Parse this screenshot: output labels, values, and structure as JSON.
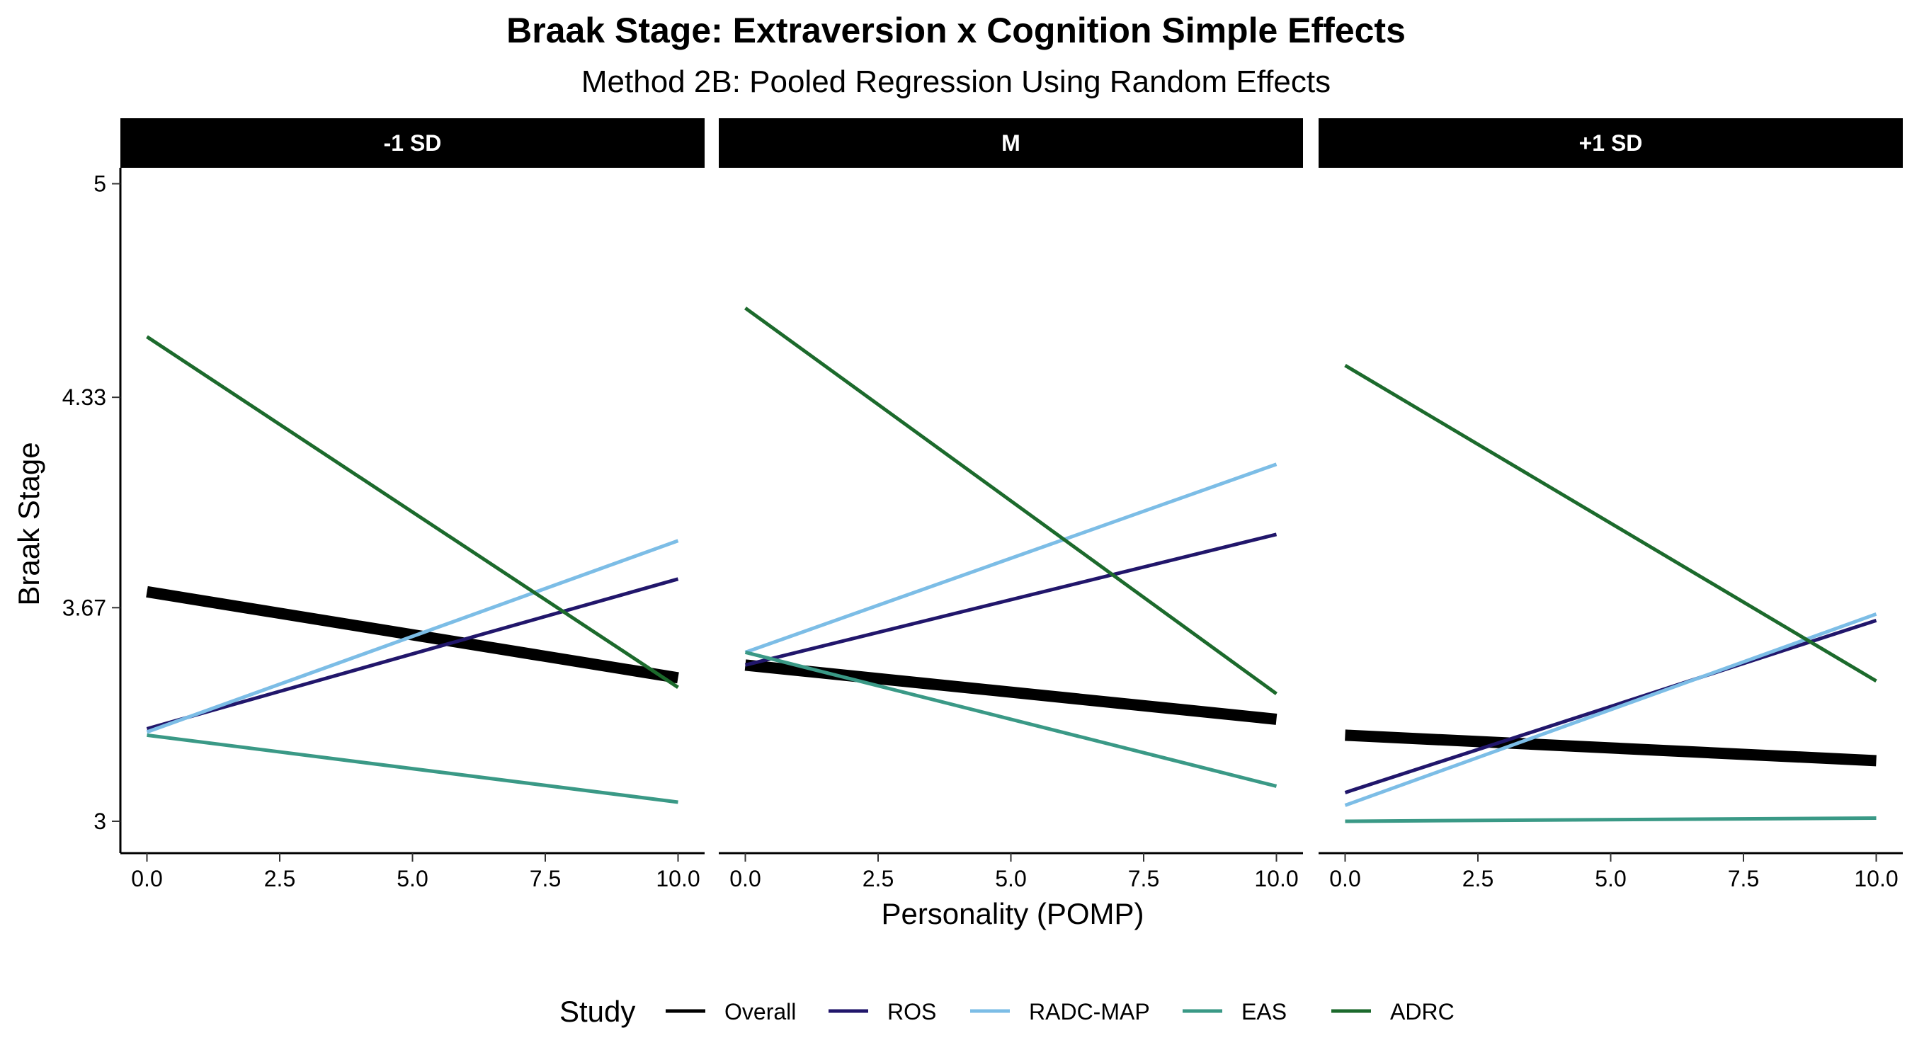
{
  "chart_data": {
    "type": "line",
    "title": "Braak Stage: Extraversion x Cognition Simple Effects",
    "subtitle": "Method 2B: Pooled Regression Using Random Effects",
    "xlabel": "Personality (POMP)",
    "ylabel": "Braak Stage",
    "x_ticks": [
      "0.0",
      "2.5",
      "5.0",
      "7.5",
      "10.0"
    ],
    "y_ticks": [
      "3",
      "3.67",
      "4.33",
      "5"
    ],
    "xlim": [
      -0.5,
      10.5
    ],
    "ylim": [
      2.9,
      5.05
    ],
    "grid": false,
    "legend": {
      "title": "Study",
      "position": "bottom",
      "entries": [
        {
          "name": "Overall",
          "color": "#000000"
        },
        {
          "name": "ROS",
          "color": "#21166b"
        },
        {
          "name": "RADC-MAP",
          "color": "#7cbde6"
        },
        {
          "name": "EAS",
          "color": "#3a9986"
        },
        {
          "name": "ADRC",
          "color": "#1c6a2c"
        }
      ]
    },
    "facets": [
      {
        "label": "-1 SD",
        "series": [
          {
            "name": "Overall",
            "x": [
              0,
              10
            ],
            "y": [
              3.72,
              3.45
            ]
          },
          {
            "name": "ROS",
            "x": [
              0,
              10
            ],
            "y": [
              3.29,
              3.76
            ]
          },
          {
            "name": "RADC-MAP",
            "x": [
              0,
              10
            ],
            "y": [
              3.28,
              3.88
            ]
          },
          {
            "name": "EAS",
            "x": [
              0,
              10
            ],
            "y": [
              3.27,
              3.06
            ]
          },
          {
            "name": "ADRC",
            "x": [
              0,
              10
            ],
            "y": [
              4.52,
              3.42
            ]
          }
        ]
      },
      {
        "label": "M",
        "series": [
          {
            "name": "Overall",
            "x": [
              0,
              10
            ],
            "y": [
              3.49,
              3.32
            ]
          },
          {
            "name": "ROS",
            "x": [
              0,
              10
            ],
            "y": [
              3.49,
              3.9
            ]
          },
          {
            "name": "RADC-MAP",
            "x": [
              0,
              10
            ],
            "y": [
              3.53,
              4.12
            ]
          },
          {
            "name": "EAS",
            "x": [
              0,
              10
            ],
            "y": [
              3.53,
              3.11
            ]
          },
          {
            "name": "ADRC",
            "x": [
              0,
              10
            ],
            "y": [
              4.61,
              3.4
            ]
          }
        ]
      },
      {
        "label": "+1 SD",
        "series": [
          {
            "name": "Overall",
            "x": [
              0,
              10
            ],
            "y": [
              3.27,
              3.19
            ]
          },
          {
            "name": "ROS",
            "x": [
              0,
              10
            ],
            "y": [
              3.09,
              3.63
            ]
          },
          {
            "name": "RADC-MAP",
            "x": [
              0,
              10
            ],
            "y": [
              3.05,
              3.65
            ]
          },
          {
            "name": "EAS",
            "x": [
              0,
              10
            ],
            "y": [
              3.0,
              3.01
            ]
          },
          {
            "name": "ADRC",
            "x": [
              0,
              10
            ],
            "y": [
              4.43,
              3.44
            ]
          }
        ]
      }
    ]
  }
}
